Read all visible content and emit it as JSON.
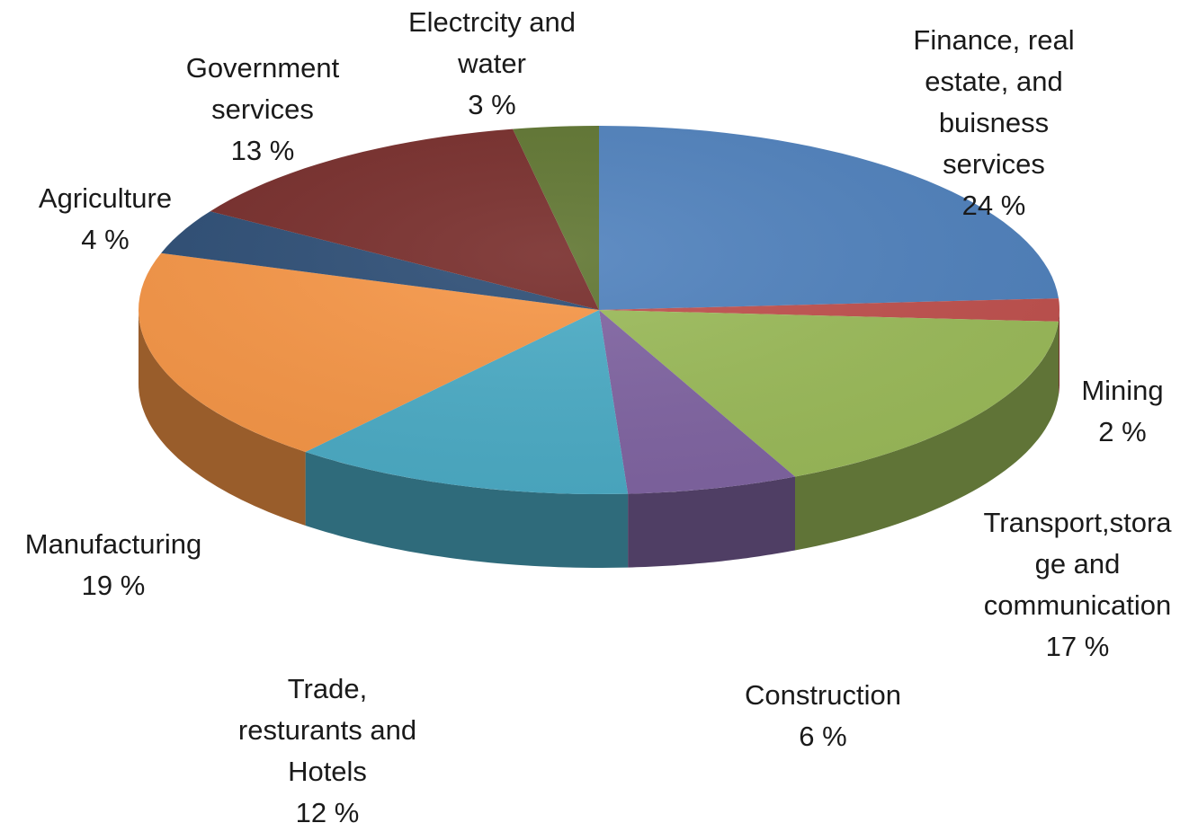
{
  "chart_data": {
    "type": "pie",
    "title": "",
    "slices": [
      {
        "label_lines": [
          "Finance, real",
          "estate, and",
          "buisness",
          "services"
        ],
        "value_label": "24 %",
        "value": 24,
        "color": "#4f81bd"
      },
      {
        "label_lines": [
          "Mining"
        ],
        "value_label": "2 %",
        "value": 2,
        "color": "#c0504d"
      },
      {
        "label_lines": [
          "Transport,stora",
          "ge and",
          "communication"
        ],
        "value_label": "17 %",
        "value": 17,
        "color": "#9bbb59"
      },
      {
        "label_lines": [
          "Construction"
        ],
        "value_label": "6 %",
        "value": 6,
        "color": "#8064a2"
      },
      {
        "label_lines": [
          "Trade,",
          "resturants and",
          "Hotels"
        ],
        "value_label": "12 %",
        "value": 12,
        "color": "#4bacc6"
      },
      {
        "label_lines": [
          "Manufacturing"
        ],
        "value_label": "19 %",
        "value": 19,
        "color": "#f79646"
      },
      {
        "label_lines": [
          "Agriculture"
        ],
        "value_label": "4 %",
        "value": 4,
        "color": "#2c4d75"
      },
      {
        "label_lines": [
          "Government",
          "services"
        ],
        "value_label": "13 %",
        "value": 13,
        "color": "#772c2a"
      },
      {
        "label_lines": [
          "Electrcity and",
          "water"
        ],
        "value_label": "3 %",
        "value": 3,
        "color": "#5f7530"
      }
    ],
    "legend": "none",
    "style": "3d-exploded-free"
  }
}
